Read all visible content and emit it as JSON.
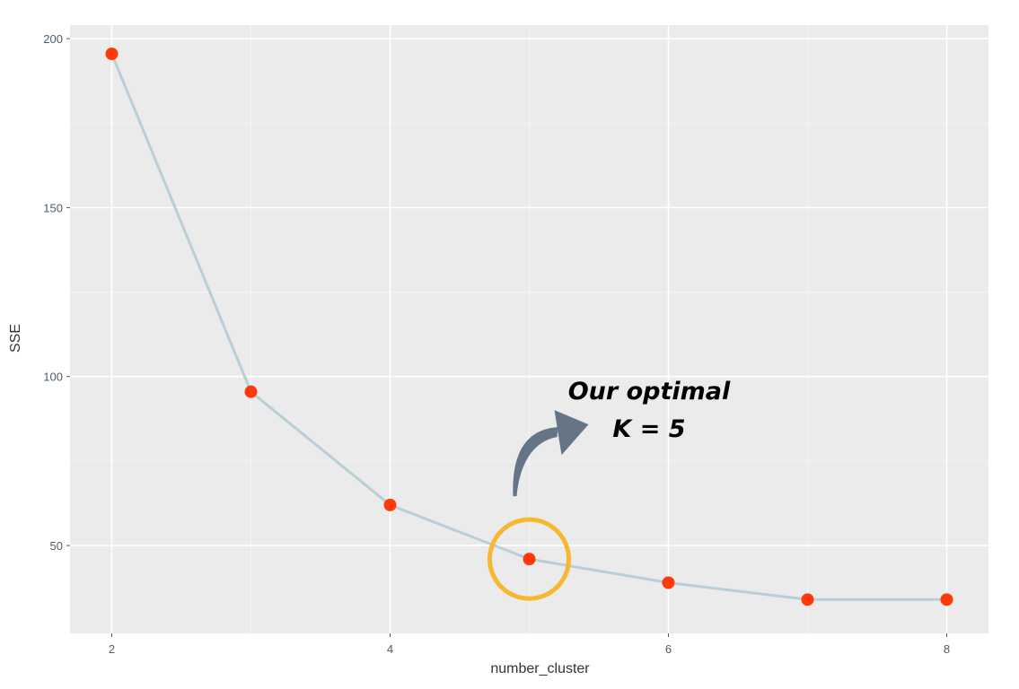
{
  "chart_data": {
    "type": "line",
    "xlabel": "number_cluster",
    "ylabel": "SSE",
    "x": [
      2,
      3,
      4,
      5,
      6,
      7,
      8
    ],
    "series": [
      {
        "values": [
          195.5,
          95.5,
          62,
          46,
          39,
          34,
          34
        ]
      }
    ],
    "xlim": [
      1.7,
      8.3
    ],
    "ylim": [
      24,
      204
    ],
    "xticks": [
      2,
      4,
      6,
      8
    ],
    "yticks": [
      50,
      100,
      150,
      200
    ],
    "xtick_labels": [
      "2",
      "4",
      "6",
      "8"
    ],
    "ytick_labels": [
      "50",
      "100",
      "150",
      "200"
    ],
    "grid": true,
    "colors": {
      "panel_background": "#ebebeb",
      "grid_major": "#ffffff",
      "grid_minor": "#f4f4f4",
      "line": "#b8cfd8",
      "point": "#ff3a0a",
      "highlight_circle": "#f5b82e",
      "arrow": "#667487"
    },
    "annotation": {
      "lines": [
        "Our optimal",
        "K = 5"
      ],
      "highlight_x": 5,
      "highlight_y": 46
    }
  }
}
